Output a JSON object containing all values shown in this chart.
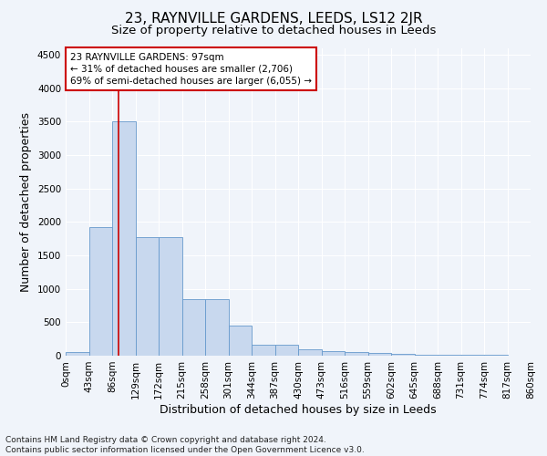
{
  "title": "23, RAYNVILLE GARDENS, LEEDS, LS12 2JR",
  "subtitle": "Size of property relative to detached houses in Leeds",
  "xlabel": "Distribution of detached houses by size in Leeds",
  "ylabel": "Number of detached properties",
  "bar_values": [
    50,
    1920,
    3500,
    1775,
    1775,
    840,
    840,
    455,
    160,
    160,
    90,
    65,
    55,
    40,
    30,
    20,
    15,
    10,
    8,
    5
  ],
  "bar_labels": [
    "0sqm",
    "43sqm",
    "86sqm",
    "129sqm",
    "172sqm",
    "215sqm",
    "258sqm",
    "301sqm",
    "344sqm",
    "387sqm",
    "430sqm",
    "473sqm",
    "516sqm",
    "559sqm",
    "602sqm",
    "645sqm",
    "688sqm",
    "731sqm",
    "774sqm",
    "817sqm",
    "860sqm"
  ],
  "bar_color": "#c8d8ee",
  "bar_edge_color": "#6699cc",
  "vline_color": "#cc0000",
  "annotation_text": "23 RAYNVILLE GARDENS: 97sqm\n← 31% of detached houses are smaller (2,706)\n69% of semi-detached houses are larger (6,055) →",
  "annotation_box_color": "#ffffff",
  "annotation_border_color": "#cc0000",
  "ylim": [
    0,
    4600
  ],
  "yticks": [
    0,
    500,
    1000,
    1500,
    2000,
    2500,
    3000,
    3500,
    4000,
    4500
  ],
  "footer_text": "Contains HM Land Registry data © Crown copyright and database right 2024.\nContains public sector information licensed under the Open Government Licence v3.0.",
  "bg_color": "#f0f4fa",
  "grid_color": "#ffffff",
  "title_fontsize": 11,
  "subtitle_fontsize": 9.5,
  "axis_label_fontsize": 9,
  "tick_fontsize": 7.5,
  "annot_fontsize": 7.5,
  "footer_fontsize": 6.5,
  "vline_x_data": 2.26
}
